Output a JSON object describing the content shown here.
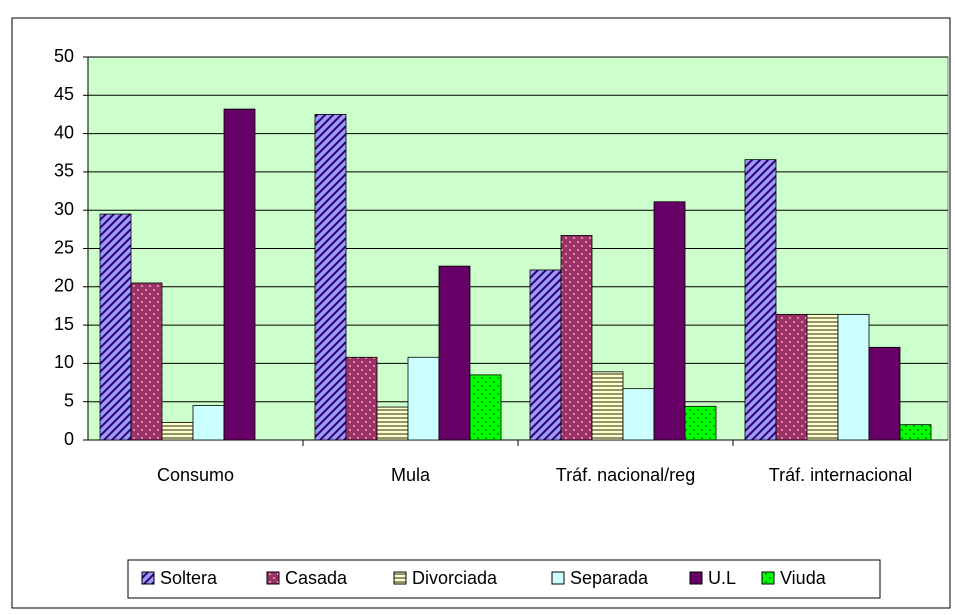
{
  "chart_data": {
    "type": "bar",
    "categories": [
      "Consumo",
      "Mula",
      "Tráf. nacional/reg",
      "Tráf. internacional"
    ],
    "series": [
      {
        "name": "Soltera",
        "color": "#9999ff",
        "values": [
          29.5,
          42.5,
          22.2,
          36.6
        ]
      },
      {
        "name": "Casada",
        "color": "#993366",
        "values": [
          20.5,
          10.8,
          26.7,
          16.4
        ]
      },
      {
        "name": "Divorciada",
        "color": "#ffffcc",
        "values": [
          2.3,
          4.3,
          8.9,
          16.4
        ]
      },
      {
        "name": "Separada",
        "color": "#ccffff",
        "values": [
          4.5,
          10.8,
          6.7,
          16.4
        ]
      },
      {
        "name": "U.L",
        "color": "#660066",
        "values": [
          43.2,
          22.7,
          31.1,
          12.1
        ]
      },
      {
        "name": "Viuda",
        "color": "#00ff00",
        "values": [
          0,
          8.5,
          4.4,
          2.0
        ]
      }
    ],
    "ylim": [
      0,
      50
    ],
    "yticks": [
      0,
      5,
      10,
      15,
      20,
      25,
      30,
      35,
      40,
      45,
      50
    ],
    "grid": true,
    "legend": "bottom",
    "plot_background": "#ccffcc"
  }
}
